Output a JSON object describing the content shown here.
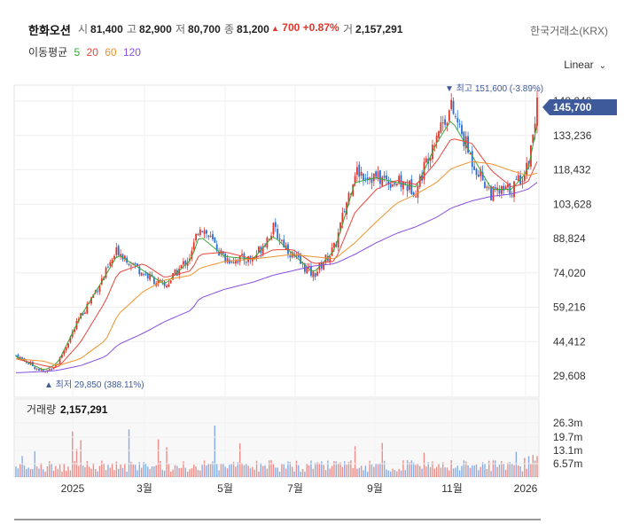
{
  "header": {
    "title": "한화오션",
    "open_label": "시",
    "open": "81,400",
    "high_label": "고",
    "high": "82,900",
    "low_label": "저",
    "low": "80,700",
    "close_label": "종",
    "close": "81,200",
    "change_arrow": "▲",
    "change": "700",
    "change_pct": "+0.87%",
    "volume_label": "거",
    "volume": "2,157,291",
    "exchange": "한국거래소(KRX)"
  },
  "ma_legend": {
    "label": "이동평균",
    "items": [
      {
        "period": "5",
        "color": "#3aa63a"
      },
      {
        "period": "20",
        "color": "#e8453c"
      },
      {
        "period": "60",
        "color": "#f0932b"
      },
      {
        "period": "120",
        "color": "#8a4fe0"
      }
    ]
  },
  "scale_toggle": {
    "label": "Linear",
    "icon": "chevron-down-icon"
  },
  "colors": {
    "up": "#e0352b",
    "down": "#2a6fd6",
    "price_tag": "#3f5a9a",
    "grid": "#eeeeee"
  },
  "chart_data": {
    "type": "candlestick",
    "price_axis": {
      "ticks": [
        "29,608",
        "44,412",
        "59,216",
        "74,020",
        "88,824",
        "103,628",
        "118,432",
        "133,236",
        "148,040"
      ],
      "ylim": [
        29608,
        148040
      ]
    },
    "x_axis": {
      "ticks": [
        "2025",
        "3월",
        "5월",
        "7월",
        "9월",
        "11월",
        "2026"
      ]
    },
    "last_price": "145,700",
    "max_annotation": {
      "marker": "▼",
      "label": "최고",
      "value": "151,600",
      "pct": "(-3.89%)"
    },
    "min_annotation": {
      "marker": "▲",
      "label": "최저",
      "value": "29,850",
      "pct": "(388.11%)"
    },
    "close_series": [
      {
        "x": "2024-12",
        "y": 38500
      },
      {
        "x": "2025-01-05",
        "y": 31000
      },
      {
        "x": "2025-01-15",
        "y": 35000
      },
      {
        "x": "2025-02-01",
        "y": 55000
      },
      {
        "x": "2025-02-20",
        "y": 74000
      },
      {
        "x": "2025-03-01",
        "y": 84000
      },
      {
        "x": "2025-03-20",
        "y": 74000
      },
      {
        "x": "2025-04-05",
        "y": 68000
      },
      {
        "x": "2025-04-25",
        "y": 82000
      },
      {
        "x": "2025-05-01",
        "y": 95000
      },
      {
        "x": "2025-05-20",
        "y": 80000
      },
      {
        "x": "2025-06-10",
        "y": 80000
      },
      {
        "x": "2025-06-25",
        "y": 93000
      },
      {
        "x": "2025-07-10",
        "y": 81000
      },
      {
        "x": "2025-07-25",
        "y": 73000
      },
      {
        "x": "2025-08-10",
        "y": 85000
      },
      {
        "x": "2025-08-25",
        "y": 118000
      },
      {
        "x": "2025-09-10",
        "y": 115000
      },
      {
        "x": "2025-09-25",
        "y": 113000
      },
      {
        "x": "2025-10-10",
        "y": 110000
      },
      {
        "x": "2025-10-25",
        "y": 135000
      },
      {
        "x": "2025-11-05",
        "y": 145000
      },
      {
        "x": "2025-11-20",
        "y": 123000
      },
      {
        "x": "2025-12-05",
        "y": 108000
      },
      {
        "x": "2025-12-20",
        "y": 110000
      },
      {
        "x": "2026-01-01",
        "y": 120000
      },
      {
        "x": "2026-01-08",
        "y": 145700
      }
    ],
    "moving_averages": {
      "ma5": [
        38000,
        32000,
        35000,
        55000,
        73000,
        82000,
        75000,
        69000,
        80000,
        90000,
        81000,
        80000,
        90000,
        82000,
        74000,
        84000,
        113000,
        115000,
        113000,
        111000,
        130000,
        140000,
        125000,
        110000,
        110000,
        118000,
        138000
      ],
      "ma20": [
        37000,
        34000,
        33000,
        44000,
        62000,
        74000,
        78000,
        72000,
        75000,
        82000,
        83000,
        80000,
        84000,
        84000,
        78000,
        79000,
        100000,
        110000,
        114000,
        112000,
        122000,
        132000,
        130000,
        118000,
        111000,
        113000,
        122000
      ],
      "ma60": [
        37000,
        36000,
        34000,
        37000,
        45000,
        56000,
        66000,
        71000,
        73000,
        76000,
        79000,
        80000,
        81000,
        82000,
        81000,
        80000,
        87000,
        96000,
        104000,
        108000,
        113000,
        119000,
        122000,
        121000,
        118000,
        116000,
        117000
      ],
      "ma120": [
        31000,
        31500,
        32000,
        34000,
        38000,
        43000,
        48000,
        53000,
        58000,
        63000,
        67000,
        70000,
        73000,
        75000,
        77000,
        78000,
        82000,
        87000,
        91000,
        94000,
        98000,
        102000,
        105000,
        107000,
        108000,
        110000,
        113000
      ]
    },
    "volume_panel": {
      "label": "거래량",
      "value": "2,157,291",
      "ticks": [
        "6.57m",
        "13.1m",
        "19.7m",
        "26.3m"
      ],
      "ylim": [
        0,
        26300000
      ]
    }
  }
}
